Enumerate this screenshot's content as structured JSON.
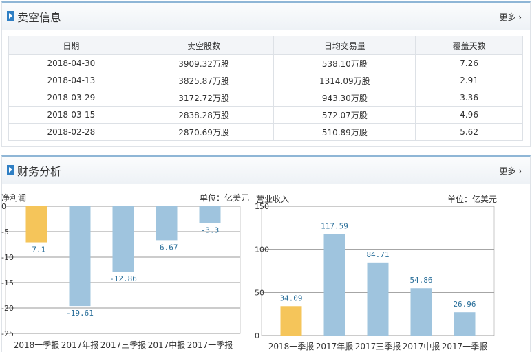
{
  "short_panel": {
    "title": "卖空信息",
    "more": "更多 ›",
    "columns": [
      "日期",
      "卖空股数",
      "日均交易量",
      "覆盖天数"
    ],
    "rows": [
      [
        "2018-04-30",
        "3909.32万股",
        "538.10万股",
        "7.26"
      ],
      [
        "2018-04-13",
        "3825.87万股",
        "1314.09万股",
        "2.91"
      ],
      [
        "2018-03-29",
        "3172.72万股",
        "943.30万股",
        "3.36"
      ],
      [
        "2018-03-15",
        "2838.28万股",
        "572.07万股",
        "4.96"
      ],
      [
        "2018-02-28",
        "2870.69万股",
        "510.89万股",
        "5.62"
      ]
    ]
  },
  "finance_panel": {
    "title": "财务分析",
    "more": "更多 ›"
  },
  "chart_data": [
    {
      "type": "bar",
      "title": "净利润",
      "unit": "单位：亿美元",
      "categories": [
        "2018一季报",
        "2017年报",
        "2017三季报",
        "2017中报",
        "2017一季报"
      ],
      "values": [
        -7.1,
        -19.61,
        -12.86,
        -6.67,
        -3.3
      ],
      "value_labels": [
        "-7.1",
        "-19.61",
        "-12.86",
        "-6.67",
        "-3.3"
      ],
      "ylim": [
        -25,
        0
      ],
      "yticks": [
        "0",
        "-5",
        "-10",
        "-15",
        "-20",
        "-25"
      ],
      "highlight_color": "#f5c55a",
      "bar_color": "#9fc4de"
    },
    {
      "type": "bar",
      "title": "营业收入",
      "unit": "单位：亿美元",
      "categories": [
        "2018一季报",
        "2017年报",
        "2017三季报",
        "2017中报",
        "2017一季报"
      ],
      "values": [
        34.09,
        117.59,
        84.71,
        54.86,
        26.96
      ],
      "value_labels": [
        "34.09",
        "117.59",
        "84.71",
        "54.86",
        "26.96"
      ],
      "ylim": [
        0,
        150
      ],
      "yticks": [
        "150",
        "100",
        "50",
        "0"
      ],
      "highlight_color": "#f5c55a",
      "bar_color": "#9fc4de"
    }
  ]
}
